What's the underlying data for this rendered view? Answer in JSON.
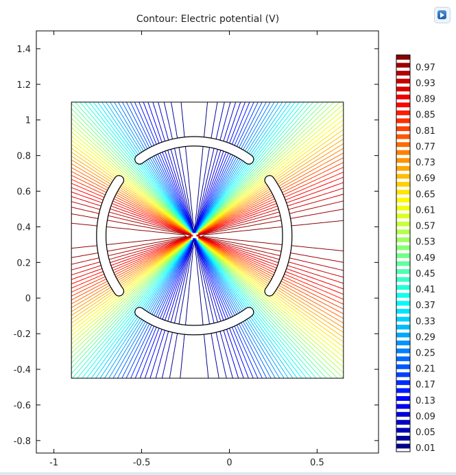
{
  "app_icon": "software-logo-icon",
  "chart_data": {
    "type": "contour",
    "title": "Contour: Electric potential (V)",
    "xlabel": "",
    "ylabel": "",
    "xlim": [
      -1.1,
      0.85
    ],
    "ylim": [
      -0.87,
      1.5
    ],
    "xticks": [
      -1,
      -0.5,
      0,
      0.5
    ],
    "xtick_labels": [
      "-1",
      "-0.5",
      "0",
      "0.5"
    ],
    "yticks": [
      -0.8,
      -0.6,
      -0.4,
      -0.2,
      0,
      0.2,
      0.4,
      0.6,
      0.8,
      1,
      1.2,
      1.4
    ],
    "ytick_labels": [
      "-0.8",
      "-0.6",
      "-0.4",
      "-0.2",
      "0",
      "0.2",
      "0.4",
      "0.6",
      "0.8",
      "1",
      "1.2",
      "1.4"
    ],
    "domain_box": {
      "x": [
        -0.9,
        0.65
      ],
      "y": [
        -0.45,
        1.1
      ]
    },
    "electrode_ring": {
      "center": [
        -0.2,
        0.35
      ],
      "inner_radius": 0.51,
      "outer_radius": 0.55
    },
    "electrode_gaps": [
      {
        "between": [
          -0.26,
          -0.15
        ],
        "at": "top"
      },
      {
        "between": [
          -0.26,
          -0.15
        ],
        "at": "bottom"
      },
      {
        "between": [
          0.28,
          0.41
        ],
        "at": "right"
      },
      {
        "between": [
          0.28,
          0.41
        ],
        "at": "left"
      }
    ],
    "field_model": "quadrupole potential 0.5 + 0.5*cos(2*theta)",
    "contour_levels": {
      "min": 0.01,
      "max": 0.99,
      "step": 0.02
    },
    "colorbar": {
      "label_values": [
        "0.97",
        "0.93",
        "0.89",
        "0.85",
        "0.81",
        "0.77",
        "0.73",
        "0.69",
        "0.65",
        "0.61",
        "0.57",
        "0.53",
        "0.49",
        "0.45",
        "0.41",
        "0.37",
        "0.33",
        "0.29",
        "0.25",
        "0.21",
        "0.17",
        "0.13",
        "0.09",
        "0.05",
        "0.01"
      ],
      "colormap": "rainbow",
      "low_color": "#00007f",
      "high_color": "#7f0000"
    },
    "grid": false,
    "legend": "right"
  }
}
